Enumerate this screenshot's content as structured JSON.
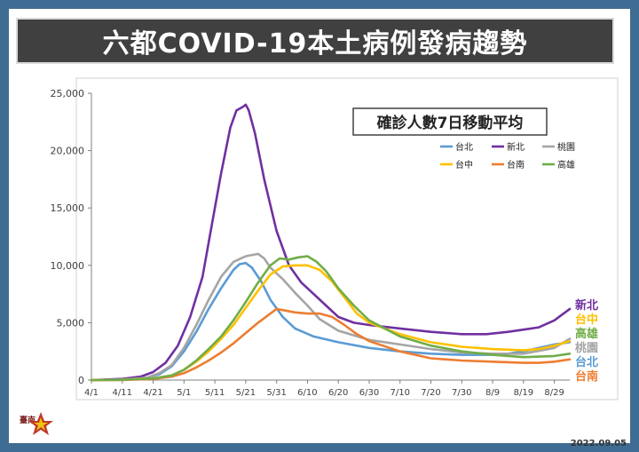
{
  "title": "六都COVID-19本土病例發病趨勢",
  "date": "2022.09.05",
  "logo_text": "臺南",
  "chart_data": {
    "type": "line",
    "title": "確診人數7日移動平均",
    "xlabel": "",
    "ylabel": "",
    "ylim": [
      0,
      25000
    ],
    "yticks": [
      0,
      5000,
      10000,
      15000,
      20000,
      25000
    ],
    "ytick_labels": [
      "0",
      "5,000",
      "10,000",
      "15,000",
      "20,000",
      "25,000"
    ],
    "x_ticks": [
      "4/1",
      "4/11",
      "4/21",
      "5/1",
      "5/11",
      "5/21",
      "5/31",
      "6/10",
      "6/20",
      "6/30",
      "7/10",
      "7/20",
      "7/30",
      "8/9",
      "8/19",
      "8/29"
    ],
    "x_tick_index": [
      0,
      10,
      20,
      30,
      40,
      50,
      60,
      70,
      80,
      90,
      100,
      110,
      120,
      130,
      140,
      150
    ],
    "xlim": [
      0,
      155
    ],
    "grid": false,
    "legend_position": "top-right",
    "series": [
      {
        "name": "台北",
        "color": "#5b9bd5",
        "x": [
          0,
          10,
          18,
          22,
          26,
          30,
          34,
          38,
          42,
          46,
          48,
          50,
          52,
          55,
          58,
          62,
          66,
          72,
          80,
          90,
          100,
          110,
          120,
          130,
          135,
          140,
          145,
          150,
          155
        ],
        "values": [
          0,
          50,
          200,
          500,
          1200,
          2500,
          4200,
          6200,
          8000,
          9600,
          10100,
          10200,
          9800,
          8600,
          7000,
          5500,
          4500,
          3800,
          3300,
          2800,
          2500,
          2300,
          2200,
          2200,
          2300,
          2500,
          2800,
          3100,
          3300
        ]
      },
      {
        "name": "新北",
        "color": "#7030a0",
        "x": [
          0,
          10,
          16,
          20,
          24,
          28,
          32,
          36,
          39,
          42,
          45,
          47,
          49,
          50,
          51,
          53,
          56,
          60,
          64,
          68,
          72,
          76,
          80,
          85,
          90,
          100,
          110,
          120,
          128,
          135,
          140,
          145,
          150,
          153,
          155
        ],
        "values": [
          0,
          100,
          300,
          700,
          1500,
          3000,
          5500,
          9000,
          13500,
          18000,
          22000,
          23500,
          23800,
          24000,
          23500,
          21500,
          17500,
          13000,
          10000,
          8500,
          7500,
          6500,
          5500,
          5000,
          4800,
          4500,
          4200,
          4000,
          4000,
          4200,
          4400,
          4600,
          5200,
          5800,
          6200
        ]
      },
      {
        "name": "桃園",
        "color": "#a5a5a5",
        "x": [
          0,
          10,
          18,
          22,
          26,
          30,
          34,
          38,
          42,
          46,
          50,
          54,
          56,
          58,
          62,
          66,
          70,
          74,
          80,
          90,
          100,
          110,
          120,
          130,
          140,
          150,
          155
        ],
        "values": [
          0,
          50,
          200,
          600,
          1300,
          2800,
          4800,
          7000,
          9000,
          10300,
          10800,
          11000,
          10600,
          9800,
          8800,
          7600,
          6500,
          5300,
          4300,
          3500,
          3100,
          2700,
          2400,
          2300,
          2300,
          2800,
          3600
        ]
      },
      {
        "name": "台中",
        "color": "#ffc000",
        "x": [
          0,
          10,
          20,
          26,
          30,
          34,
          38,
          42,
          46,
          50,
          54,
          58,
          62,
          66,
          70,
          74,
          78,
          82,
          86,
          90,
          100,
          110,
          120,
          130,
          140,
          145,
          150,
          155
        ],
        "values": [
          0,
          20,
          150,
          400,
          900,
          1600,
          2500,
          3600,
          4800,
          6300,
          7800,
          9200,
          9900,
          10000,
          10000,
          9600,
          8600,
          7200,
          5800,
          5000,
          4000,
          3300,
          2900,
          2700,
          2600,
          2700,
          3000,
          3400
        ]
      },
      {
        "name": "台南",
        "color": "#ed7d31",
        "x": [
          0,
          10,
          20,
          26,
          30,
          34,
          38,
          42,
          46,
          50,
          54,
          58,
          60,
          62,
          66,
          70,
          74,
          78,
          82,
          86,
          90,
          100,
          110,
          120,
          130,
          140,
          145,
          150,
          155
        ],
        "values": [
          0,
          10,
          100,
          300,
          600,
          1100,
          1700,
          2400,
          3200,
          4100,
          5000,
          5800,
          6200,
          6100,
          5900,
          5800,
          5800,
          5500,
          4800,
          4000,
          3400,
          2500,
          1900,
          1700,
          1600,
          1500,
          1500,
          1600,
          1800
        ]
      },
      {
        "name": "高雄",
        "color": "#70ad47",
        "x": [
          0,
          10,
          20,
          26,
          30,
          34,
          38,
          42,
          46,
          50,
          54,
          58,
          61,
          64,
          67,
          70,
          73,
          76,
          80,
          85,
          90,
          100,
          110,
          120,
          130,
          140,
          150,
          155
        ],
        "values": [
          0,
          20,
          150,
          400,
          900,
          1700,
          2700,
          3800,
          5200,
          6800,
          8500,
          10000,
          10600,
          10500,
          10700,
          10800,
          10300,
          9500,
          8000,
          6500,
          5200,
          3800,
          3000,
          2500,
          2200,
          2000,
          2100,
          2300
        ]
      }
    ],
    "right_labels": [
      {
        "text": "新北",
        "color": "#7030a0"
      },
      {
        "text": "台中",
        "color": "#ffc000"
      },
      {
        "text": "高雄",
        "color": "#70ad47"
      },
      {
        "text": "桃園",
        "color": "#a5a5a5"
      },
      {
        "text": "台北",
        "color": "#5b9bd5"
      },
      {
        "text": "台南",
        "color": "#ed7d31"
      }
    ]
  }
}
